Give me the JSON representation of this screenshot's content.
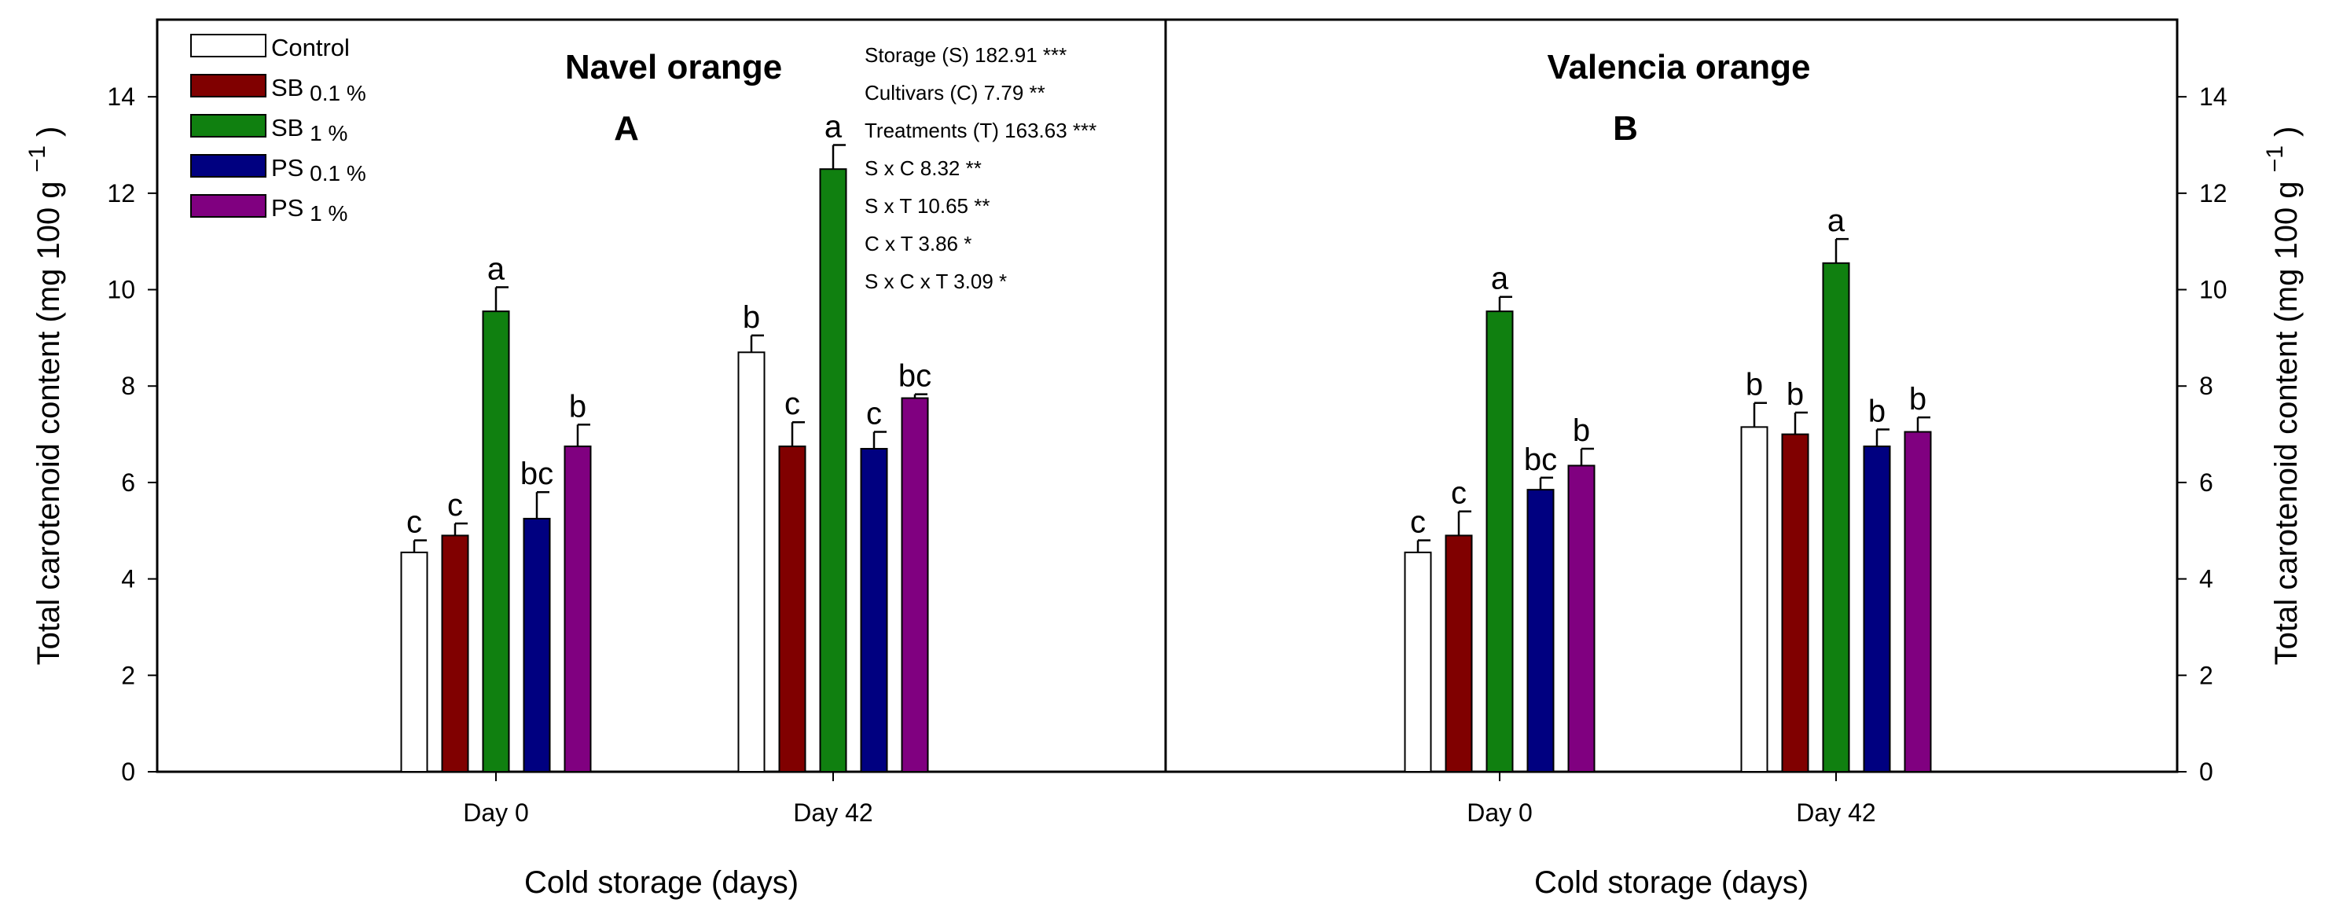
{
  "chart_data": {
    "type": "bar",
    "categories": [
      "Day 0",
      "Day 42"
    ],
    "xlabel": "Cold storage (days)",
    "ylabel": "Total carotenoid content (mg 100 g",
    "ylabel_superscript": "−1",
    "ylabel_close": ")",
    "ylim": [
      0,
      15.6
    ],
    "yticks": [
      0,
      2,
      4,
      6,
      8,
      10,
      12,
      14
    ],
    "series_colors": [
      "#ffffff",
      "#800000",
      "#108010",
      "#000080",
      "#800080"
    ],
    "legend": [
      {
        "name": "Control",
        "sub": ""
      },
      {
        "name": "SB",
        "sub": "0.1 %"
      },
      {
        "name": "SB",
        "sub": "1 %"
      },
      {
        "name": "PS",
        "sub": "0.1 %"
      },
      {
        "name": "PS",
        "sub": "1 %"
      }
    ],
    "panels": [
      {
        "title": "Navel orange",
        "letter": "A",
        "series": [
          {
            "name": "Control",
            "values": [
              4.55,
              8.7
            ],
            "errors": [
              0.25,
              0.35
            ],
            "labels": [
              "c",
              "b"
            ]
          },
          {
            "name": "SB 0.1 %",
            "values": [
              4.9,
              6.75
            ],
            "errors": [
              0.25,
              0.5
            ],
            "labels": [
              "c",
              "c"
            ]
          },
          {
            "name": "SB 1 %",
            "values": [
              9.55,
              12.5
            ],
            "errors": [
              0.5,
              0.5
            ],
            "labels": [
              "a",
              "a"
            ]
          },
          {
            "name": "PS 0.1 %",
            "values": [
              5.25,
              6.7
            ],
            "errors": [
              0.55,
              0.35
            ],
            "labels": [
              "bc",
              "c"
            ]
          },
          {
            "name": "PS 1 %",
            "values": [
              6.75,
              7.75
            ],
            "errors": [
              0.45,
              0.08
            ],
            "labels": [
              "b",
              "bc"
            ]
          }
        ]
      },
      {
        "title": "Valencia orange",
        "letter": "B",
        "series": [
          {
            "name": "Control",
            "values": [
              4.55,
              7.15
            ],
            "errors": [
              0.25,
              0.5
            ],
            "labels": [
              "c",
              "b"
            ]
          },
          {
            "name": "SB 0.1 %",
            "values": [
              4.9,
              7.0
            ],
            "errors": [
              0.5,
              0.45
            ],
            "labels": [
              "c",
              "b"
            ]
          },
          {
            "name": "SB 1 %",
            "values": [
              9.55,
              10.55
            ],
            "errors": [
              0.3,
              0.5
            ],
            "labels": [
              "a",
              "a"
            ]
          },
          {
            "name": "PS 0.1 %",
            "values": [
              5.85,
              6.75
            ],
            "errors": [
              0.25,
              0.35
            ],
            "labels": [
              "bc",
              "b"
            ]
          },
          {
            "name": "PS 1 %",
            "values": [
              6.35,
              7.05
            ],
            "errors": [
              0.35,
              0.3
            ],
            "labels": [
              "b",
              "b"
            ]
          }
        ]
      }
    ],
    "annotations": [
      "Storage (S) 182.91 ***",
      "Cultivars (C) 7.79 **",
      "Treatments (T) 163.63 ***",
      "S x C 8.32 **",
      "S x T 10.65 **",
      "C x T 3.86 *",
      "S x C x T 3.09 *"
    ]
  }
}
